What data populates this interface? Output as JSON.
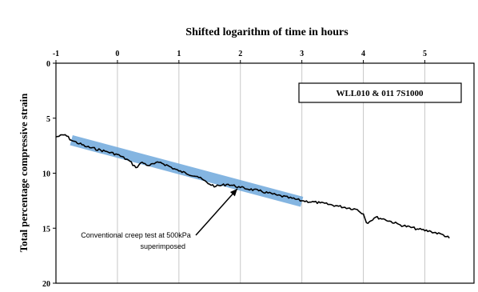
{
  "chart_data": {
    "type": "line",
    "title": "Shifted logarithm of time in hours",
    "ylabel": "Total percentage compressive strain",
    "xlabel": "",
    "legend_label": "WLL010 & 011 7S1000",
    "legend_placement": "top-right",
    "x_axis_position": "top",
    "y_axis_inverted": true,
    "xlim": [
      -1,
      5.8
    ],
    "ylim": [
      0,
      20
    ],
    "x_ticks": [
      -1,
      0,
      1,
      2,
      3,
      4,
      5
    ],
    "y_ticks": [
      0,
      5,
      10,
      15,
      20
    ],
    "grid": "vertical-only",
    "series": [
      {
        "color": "#000000",
        "style": "jagged-line",
        "x": [
          -1.0,
          -0.85,
          -0.75,
          -0.5,
          -0.2,
          0.0,
          0.2,
          0.3,
          0.4,
          0.5,
          0.7,
          1.0,
          1.3,
          1.5,
          1.6,
          1.8,
          2.0,
          2.3,
          2.6,
          3.0,
          3.3,
          3.6,
          3.9,
          4.0,
          4.05,
          4.1,
          4.2,
          4.35,
          4.6,
          4.9,
          5.1,
          5.3,
          5.4
        ],
        "y": [
          6.7,
          6.5,
          7.0,
          7.6,
          8.0,
          8.3,
          8.9,
          9.5,
          9.0,
          9.3,
          9.0,
          9.8,
          10.3,
          11.0,
          11.2,
          11.0,
          11.3,
          11.6,
          12.0,
          12.5,
          12.7,
          13.0,
          13.3,
          13.7,
          14.5,
          14.4,
          14.0,
          14.2,
          14.7,
          15.1,
          15.3,
          15.6,
          15.9
        ]
      },
      {
        "color": "#5b9bd5",
        "style": "highlight-band",
        "x": [
          -0.75,
          3.0
        ],
        "y": [
          7.0,
          12.6
        ]
      }
    ],
    "annotations": [
      {
        "text_line1": "Conventional creep test at 500kPa",
        "text_line2": "superimposed",
        "arrow_to_x": 1.95,
        "arrow_to_y": 11.2
      }
    ]
  }
}
